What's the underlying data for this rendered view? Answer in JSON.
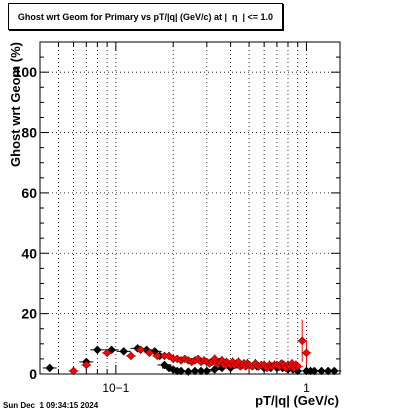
{
  "chart_data": {
    "type": "scatter",
    "title": "Ghost wrt Geom for Primary vs pT/|q| (GeV/c) at |  η  | <= 1.0",
    "xlabel": "pT/|q| (GeV/c)",
    "ylabel": "Ghost wrt Geom (%)",
    "xscale": "log",
    "xlim": [
      0.04,
      1.5
    ],
    "ylim": [
      0,
      110
    ],
    "grid": true,
    "yticks": [
      0,
      20,
      40,
      60,
      80,
      100
    ],
    "xtick_labels": [
      "10−1",
      "1"
    ],
    "series": [
      {
        "color": "#000000",
        "marker": "diamond",
        "x": [
          0.045,
          0.07,
          0.08,
          0.095,
          0.11,
          0.13,
          0.145,
          0.16,
          0.17,
          0.18,
          0.19,
          0.2,
          0.21,
          0.22,
          0.24,
          0.26,
          0.28,
          0.3,
          0.33,
          0.36,
          0.4,
          0.45,
          0.5,
          0.55,
          0.6,
          0.65,
          0.7,
          0.75,
          0.8,
          0.85,
          0.9,
          1.0,
          1.05,
          1.1,
          1.2,
          1.3,
          1.4
        ],
        "y": [
          2,
          4,
          8,
          8,
          7.5,
          8.5,
          8,
          7.5,
          6,
          3,
          2,
          1.5,
          1,
          1,
          0.8,
          1,
          1,
          1,
          1.5,
          2,
          2,
          3,
          3,
          2.5,
          2,
          2,
          2,
          2,
          1.5,
          1.5,
          1,
          1,
          1,
          1,
          1,
          1,
          1
        ]
      },
      {
        "color": "#ff0000",
        "marker": "diamond",
        "x": [
          0.06,
          0.07,
          0.09,
          0.12,
          0.135,
          0.15,
          0.165,
          0.18,
          0.19,
          0.2,
          0.21,
          0.22,
          0.23,
          0.24,
          0.25,
          0.26,
          0.27,
          0.28,
          0.29,
          0.3,
          0.31,
          0.32,
          0.33,
          0.34,
          0.35,
          0.36,
          0.37,
          0.38,
          0.39,
          0.4,
          0.41,
          0.42,
          0.43,
          0.44,
          0.45,
          0.46,
          0.47,
          0.48,
          0.49,
          0.5,
          0.52,
          0.54,
          0.56,
          0.58,
          0.6,
          0.62,
          0.64,
          0.66,
          0.68,
          0.7,
          0.72,
          0.74,
          0.76,
          0.78,
          0.8,
          0.82,
          0.84,
          0.86,
          0.88,
          0.9,
          0.95,
          1.0
        ],
        "y": [
          1,
          3,
          7,
          6,
          8,
          7,
          6,
          6,
          6,
          5,
          5,
          4.5,
          5,
          4.5,
          4,
          4.5,
          5,
          4,
          4.5,
          4,
          3.5,
          4,
          5,
          3.5,
          4,
          4.5,
          3,
          4,
          3.5,
          3,
          4,
          3,
          3.5,
          4,
          2.5,
          3,
          3.5,
          2.5,
          3.5,
          3,
          2.5,
          3.5,
          2.5,
          3,
          3,
          2,
          3,
          2.5,
          3,
          3,
          2.5,
          3.5,
          3,
          2,
          3,
          2.5,
          3.5,
          2,
          3,
          2.5,
          11,
          7
        ],
        "yerr": [
          0.5,
          0.7,
          1,
          1,
          1,
          1,
          1,
          1,
          1,
          1,
          1,
          1,
          1,
          1,
          1,
          1,
          1,
          1,
          1,
          1,
          1,
          1,
          1.5,
          1,
          1,
          1.5,
          1,
          1,
          1,
          1,
          1.5,
          1,
          1,
          1.5,
          1,
          1,
          1.5,
          1,
          1.5,
          1,
          1,
          1.5,
          1,
          1,
          1.5,
          1,
          1.5,
          1,
          1.5,
          1,
          1.5,
          1,
          1.5,
          1,
          1.5,
          1,
          1.5,
          1,
          1.5,
          1,
          7,
          4
        ]
      }
    ]
  },
  "footer": {
    "timestamp": "Sun Dec  1 09:34:15 2024"
  }
}
